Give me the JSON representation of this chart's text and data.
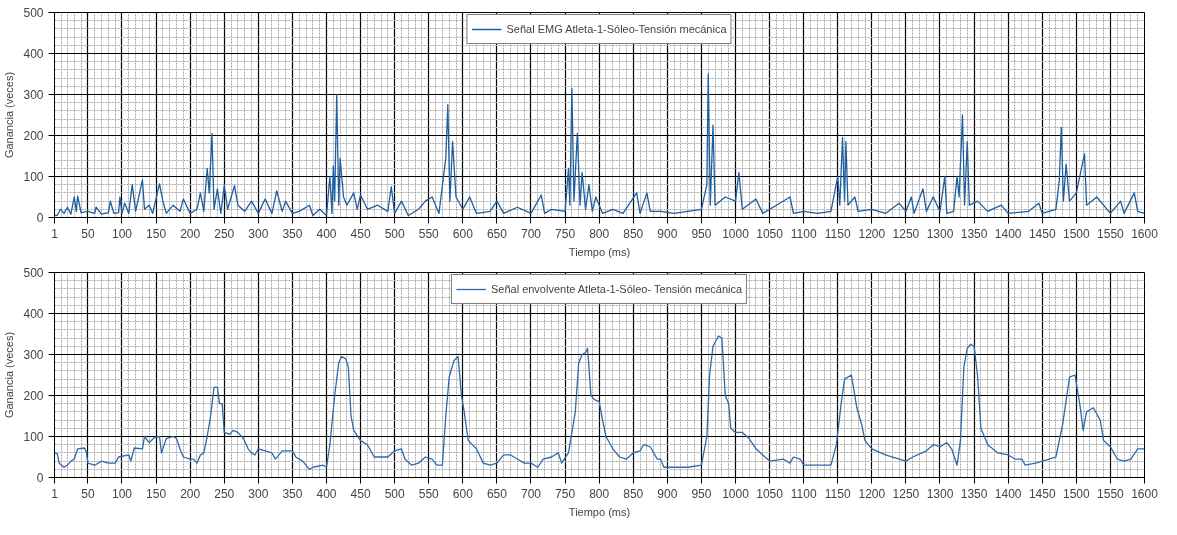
{
  "chart_data": [
    {
      "type": "line",
      "xlabel": "Tiempo (ms)",
      "ylabel": "Ganancia (veces)",
      "legend": "top",
      "grid": true,
      "xlim": [
        1,
        1600
      ],
      "ylim": [
        0,
        500
      ],
      "xticks": [
        1,
        50,
        100,
        150,
        200,
        250,
        300,
        350,
        400,
        450,
        500,
        550,
        600,
        650,
        700,
        750,
        800,
        850,
        900,
        950,
        1000,
        1050,
        1100,
        1150,
        1200,
        1250,
        1300,
        1350,
        1400,
        1450,
        1500,
        1550,
        1600
      ],
      "yticks": [
        0,
        100,
        200,
        300,
        400,
        500
      ],
      "series": [
        {
          "name": "Señal EMG Atleta-1-Sóleo-Tensión mecánica",
          "color": "#1f5fa0",
          "x": [
            1,
            5,
            10,
            15,
            20,
            25,
            30,
            33,
            35,
            40,
            50,
            60,
            62,
            70,
            80,
            83,
            88,
            95,
            97,
            100,
            104,
            110,
            115,
            120,
            130,
            133,
            140,
            145,
            155,
            160,
            165,
            175,
            185,
            190,
            200,
            210,
            215,
            220,
            225,
            228,
            232,
            235,
            240,
            245,
            250,
            255,
            265,
            270,
            280,
            290,
            300,
            310,
            320,
            327,
            335,
            340,
            350,
            360,
            375,
            380,
            390,
            400,
            405,
            408,
            410,
            412,
            415,
            418,
            420,
            425,
            430,
            440,
            445,
            450,
            460,
            475,
            490,
            495,
            500,
            510,
            520,
            535,
            545,
            555,
            565,
            575,
            578,
            581,
            585,
            590,
            600,
            610,
            620,
            640,
            650,
            660,
            680,
            700,
            715,
            720,
            730,
            750,
            755,
            757,
            760,
            763,
            768,
            772,
            775,
            780,
            785,
            790,
            795,
            805,
            820,
            835,
            855,
            860,
            870,
            875,
            890,
            910,
            930,
            950,
            958,
            960,
            963,
            967,
            970,
            985,
            1000,
            1005,
            1010,
            1030,
            1040,
            1060,
            1080,
            1085,
            1100,
            1120,
            1140,
            1150,
            1153,
            1157,
            1160,
            1162,
            1165,
            1175,
            1180,
            1200,
            1220,
            1240,
            1250,
            1258,
            1262,
            1275,
            1280,
            1290,
            1300,
            1307,
            1310,
            1320,
            1325,
            1328,
            1333,
            1336,
            1340,
            1343,
            1355,
            1370,
            1390,
            1400,
            1430,
            1445,
            1450,
            1470,
            1475,
            1478,
            1481,
            1485,
            1490,
            1500,
            1512,
            1515,
            1530,
            1545,
            1550,
            1565,
            1570,
            1585,
            1590,
            1600
          ],
          "values": [
            5,
            5,
            20,
            10,
            25,
            8,
            50,
            15,
            52,
            12,
            15,
            10,
            25,
            8,
            12,
            40,
            10,
            12,
            50,
            10,
            35,
            10,
            80,
            15,
            92,
            20,
            30,
            10,
            82,
            40,
            10,
            30,
            15,
            45,
            10,
            20,
            60,
            15,
            120,
            60,
            205,
            20,
            70,
            10,
            78,
            20,
            78,
            30,
            15,
            40,
            10,
            45,
            10,
            65,
            15,
            40,
            10,
            15,
            30,
            5,
            20,
            5,
            100,
            10,
            125,
            40,
            300,
            30,
            145,
            50,
            30,
            60,
            20,
            55,
            20,
            30,
            15,
            75,
            10,
            40,
            5,
            20,
            40,
            50,
            10,
            145,
            275,
            40,
            185,
            50,
            20,
            50,
            10,
            15,
            40,
            10,
            25,
            10,
            55,
            10,
            20,
            15,
            120,
            30,
            315,
            40,
            205,
            30,
            110,
            20,
            80,
            15,
            50,
            10,
            20,
            10,
            60,
            10,
            60,
            15,
            15,
            10,
            15,
            20,
            80,
            350,
            30,
            225,
            30,
            50,
            40,
            110,
            20,
            45,
            10,
            30,
            50,
            10,
            15,
            10,
            15,
            100,
            30,
            195,
            40,
            185,
            30,
            50,
            15,
            20,
            10,
            35,
            15,
            50,
            10,
            70,
            15,
            50,
            15,
            100,
            10,
            15,
            100,
            50,
            250,
            30,
            185,
            30,
            40,
            15,
            30,
            10,
            15,
            35,
            10,
            20,
            90,
            220,
            40,
            130,
            40,
            60,
            155,
            30,
            50,
            20,
            10,
            40,
            10,
            60,
            15,
            10
          ]
        }
      ]
    },
    {
      "type": "line",
      "xlabel": "Tiempo (ms)",
      "ylabel": "Ganancia (veces)",
      "legend": "top",
      "grid": true,
      "xlim": [
        1,
        1600
      ],
      "ylim": [
        0,
        500
      ],
      "xticks": [
        1,
        50,
        100,
        150,
        200,
        250,
        300,
        350,
        400,
        450,
        500,
        550,
        600,
        650,
        700,
        750,
        800,
        850,
        900,
        950,
        1000,
        1050,
        1100,
        1150,
        1200,
        1250,
        1300,
        1350,
        1400,
        1450,
        1500,
        1550,
        1600
      ],
      "yticks": [
        0,
        100,
        200,
        300,
        400,
        500
      ],
      "series": [
        {
          "name": "Señal envolvente Atleta-1-Sóleo- Tensión mecánica",
          "color": "#2e6aa8",
          "x": [
            1,
            5,
            8,
            15,
            20,
            25,
            30,
            35,
            45,
            48,
            50,
            60,
            70,
            80,
            90,
            95,
            110,
            113,
            118,
            130,
            133,
            140,
            148,
            155,
            158,
            165,
            175,
            180,
            185,
            190,
            200,
            205,
            210,
            215,
            220,
            225,
            230,
            235,
            240,
            243,
            247,
            250,
            258,
            263,
            270,
            278,
            285,
            290,
            295,
            300,
            310,
            320,
            325,
            335,
            350,
            355,
            365,
            375,
            380,
            395,
            400,
            405,
            412,
            418,
            422,
            428,
            432,
            436,
            440,
            450,
            460,
            470,
            480,
            490,
            500,
            510,
            515,
            525,
            535,
            545,
            555,
            562,
            570,
            575,
            580,
            587,
            593,
            598,
            602,
            608,
            620,
            630,
            640,
            650,
            660,
            670,
            680,
            690,
            700,
            710,
            718,
            730,
            740,
            745,
            755,
            765,
            770,
            775,
            780,
            783,
            788,
            793,
            800,
            805,
            810,
            820,
            830,
            840,
            850,
            860,
            865,
            875,
            885,
            890,
            895,
            910,
            930,
            950,
            958,
            962,
            967,
            975,
            980,
            985,
            990,
            993,
            1000,
            1010,
            1020,
            1030,
            1040,
            1050,
            1070,
            1080,
            1085,
            1095,
            1100,
            1130,
            1140,
            1148,
            1155,
            1160,
            1170,
            1178,
            1185,
            1190,
            1200,
            1220,
            1240,
            1250,
            1260,
            1280,
            1290,
            1300,
            1310,
            1317,
            1325,
            1330,
            1335,
            1340,
            1345,
            1350,
            1355,
            1360,
            1370,
            1385,
            1400,
            1410,
            1420,
            1425,
            1440,
            1460,
            1470,
            1480,
            1490,
            1498,
            1505,
            1510,
            1515,
            1525,
            1535,
            1540,
            1550,
            1560,
            1570,
            1580,
            1590,
            1600
          ],
          "values": [
            60,
            58,
            35,
            25,
            30,
            40,
            45,
            70,
            72,
            60,
            35,
            30,
            40,
            35,
            35,
            50,
            55,
            40,
            72,
            70,
            100,
            85,
            98,
            100,
            60,
            95,
            100,
            95,
            70,
            50,
            45,
            45,
            35,
            55,
            60,
            100,
            150,
            220,
            220,
            180,
            180,
            110,
            105,
            115,
            110,
            95,
            70,
            60,
            55,
            70,
            65,
            60,
            45,
            65,
            65,
            50,
            40,
            20,
            25,
            30,
            25,
            80,
            200,
            280,
            295,
            290,
            270,
            150,
            115,
            90,
            80,
            50,
            50,
            50,
            65,
            70,
            45,
            30,
            35,
            50,
            45,
            30,
            30,
            150,
            245,
            285,
            295,
            200,
            160,
            90,
            70,
            35,
            30,
            35,
            55,
            55,
            45,
            35,
            35,
            25,
            45,
            50,
            60,
            35,
            60,
            160,
            280,
            300,
            305,
            315,
            200,
            190,
            185,
            140,
            100,
            70,
            50,
            45,
            60,
            65,
            80,
            75,
            45,
            45,
            25,
            25,
            25,
            30,
            100,
            250,
            320,
            345,
            340,
            200,
            180,
            120,
            110,
            110,
            95,
            70,
            55,
            40,
            45,
            35,
            50,
            45,
            30,
            30,
            30,
            80,
            180,
            240,
            250,
            170,
            130,
            90,
            70,
            55,
            45,
            40,
            50,
            65,
            80,
            75,
            85,
            70,
            30,
            90,
            270,
            315,
            325,
            320,
            250,
            120,
            80,
            60,
            55,
            45,
            45,
            30,
            35,
            45,
            50,
            130,
            245,
            250,
            180,
            115,
            160,
            170,
            140,
            90,
            75,
            45,
            40,
            45,
            70,
            70
          ]
        }
      ]
    }
  ]
}
